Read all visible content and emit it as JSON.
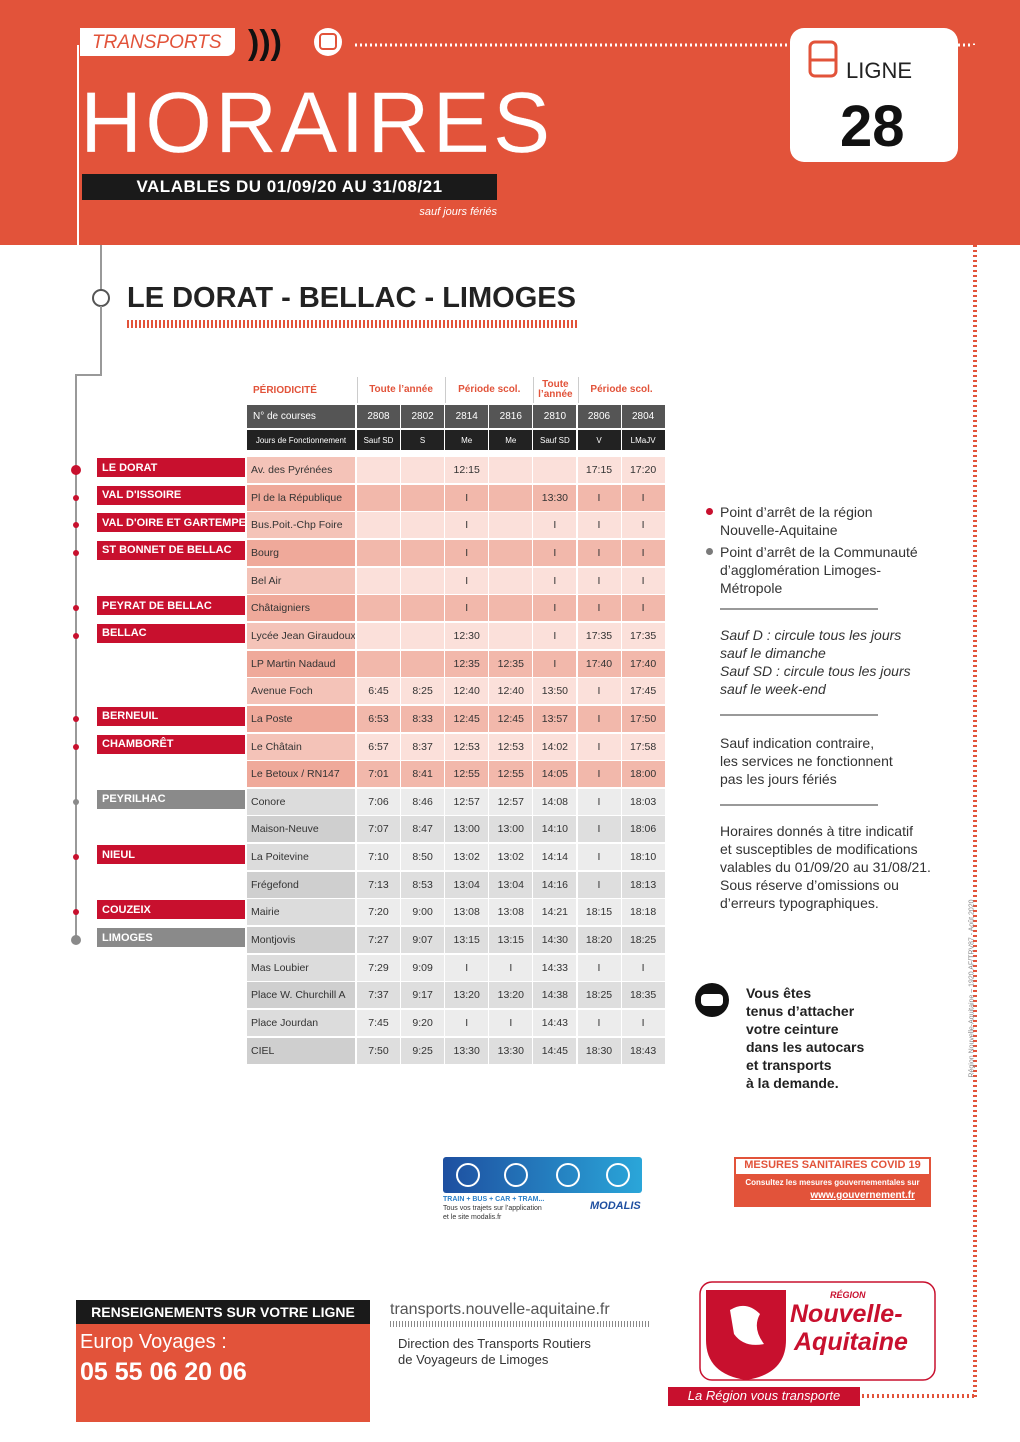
{
  "header": {
    "label": "TRANSPORTS",
    "title": "HORAIRES",
    "validity": "VALABLES DU 01/09/20 AU 31/08/21",
    "note": "sauf jours fériés",
    "line_label": "LIGNE",
    "line_number": "28"
  },
  "route": "LE DORAT - BELLAC - LIMOGES",
  "table": {
    "period_label": "PÉRIODICITÉ",
    "periods": [
      "Toute l’année",
      "Période scol.",
      "Toute l’année",
      "Période scol."
    ],
    "courses_label": "N° de courses",
    "courses": [
      "2808",
      "2802",
      "2814",
      "2816",
      "2810",
      "2806",
      "2804"
    ],
    "days_label": "Jours de Fonctionnement",
    "days": [
      "Sauf SD",
      "S",
      "Me",
      "Me",
      "Sauf SD",
      "V",
      "LMaJV"
    ],
    "rows": [
      {
        "commune": "LE DORAT",
        "color": "#c8102e",
        "stop": "Av. des Pyrénées",
        "times": [
          null,
          null,
          "12:15",
          null,
          null,
          "17:15",
          "17:20"
        ]
      },
      {
        "commune": "VAL D'ISSOIRE",
        "color": "#c8102e",
        "stop": "Pl de la République",
        "times": [
          null,
          null,
          "I",
          null,
          "13:30",
          "I",
          "I"
        ]
      },
      {
        "commune": "VAL D'OIRE ET GARTEMPE",
        "color": "#c8102e",
        "stop": "Bus.Poit.-Chp Foire",
        "times": [
          null,
          null,
          "I",
          null,
          "I",
          "I",
          "I"
        ]
      },
      {
        "commune": "ST BONNET DE BELLAC",
        "color": "#c8102e",
        "stop": "Bourg",
        "times": [
          null,
          null,
          "I",
          null,
          "I",
          "I",
          "I"
        ]
      },
      {
        "commune": null,
        "color": null,
        "stop": "Bel Air",
        "times": [
          null,
          null,
          "I",
          null,
          "I",
          "I",
          "I"
        ]
      },
      {
        "commune": "PEYRAT DE BELLAC",
        "color": "#c8102e",
        "stop": "Châtaigniers",
        "times": [
          null,
          null,
          "I",
          null,
          "I",
          "I",
          "I"
        ]
      },
      {
        "commune": "BELLAC",
        "color": "#c8102e",
        "stop": "Lycée Jean Giraudoux",
        "times": [
          null,
          null,
          "12:30",
          null,
          "I",
          "17:35",
          "17:35"
        ]
      },
      {
        "commune": null,
        "color": null,
        "stop": "LP Martin Nadaud",
        "times": [
          null,
          null,
          "12:35",
          "12:35",
          "I",
          "17:40",
          "17:40"
        ]
      },
      {
        "commune": null,
        "color": null,
        "stop": "Avenue Foch",
        "times": [
          "6:45",
          "8:25",
          "12:40",
          "12:40",
          "13:50",
          "I",
          "17:45"
        ]
      },
      {
        "commune": "BERNEUIL",
        "color": "#c8102e",
        "stop": "La Poste",
        "times": [
          "6:53",
          "8:33",
          "12:45",
          "12:45",
          "13:57",
          "I",
          "17:50"
        ]
      },
      {
        "commune": "CHAMBORÊT",
        "color": "#c8102e",
        "stop": "Le Châtain",
        "times": [
          "6:57",
          "8:37",
          "12:53",
          "12:53",
          "14:02",
          "I",
          "17:58"
        ]
      },
      {
        "commune": null,
        "color": null,
        "stop": "Le Betoux / RN147",
        "times": [
          "7:01",
          "8:41",
          "12:55",
          "12:55",
          "14:05",
          "I",
          "18:00"
        ]
      },
      {
        "commune": "PEYRILHAC",
        "color": "#8a8a8a",
        "stop": "Conore",
        "times": [
          "7:06",
          "8:46",
          "12:57",
          "12:57",
          "14:08",
          "I",
          "18:03"
        ]
      },
      {
        "commune": null,
        "color": null,
        "stop": "Maison-Neuve",
        "times": [
          "7:07",
          "8:47",
          "13:00",
          "13:00",
          "14:10",
          "I",
          "18:06"
        ]
      },
      {
        "commune": "NIEUL",
        "color": "#c8102e",
        "stop": "La Poitevine",
        "times": [
          "7:10",
          "8:50",
          "13:02",
          "13:02",
          "14:14",
          "I",
          "18:10"
        ]
      },
      {
        "commune": null,
        "color": null,
        "stop": "Frégefond",
        "times": [
          "7:13",
          "8:53",
          "13:04",
          "13:04",
          "14:16",
          "I",
          "18:13"
        ]
      },
      {
        "commune": "COUZEIX",
        "color": "#c8102e",
        "stop": "Mairie",
        "times": [
          "7:20",
          "9:00",
          "13:08",
          "13:08",
          "14:21",
          "18:15",
          "18:18"
        ]
      },
      {
        "commune": "LIMOGES",
        "color": "#8a8a8a",
        "stop": "Montjovis",
        "times": [
          "7:27",
          "9:07",
          "13:15",
          "13:15",
          "14:30",
          "18:20",
          "18:25"
        ]
      },
      {
        "commune": null,
        "color": null,
        "stop": "Mas Loubier",
        "times": [
          "7:29",
          "9:09",
          "I",
          "I",
          "14:33",
          "I",
          "I"
        ]
      },
      {
        "commune": null,
        "color": null,
        "stop": "Place W. Churchill A",
        "times": [
          "7:37",
          "9:17",
          "13:20",
          "13:20",
          "14:38",
          "18:25",
          "18:35"
        ]
      },
      {
        "commune": null,
        "color": null,
        "stop": "Place Jourdan",
        "times": [
          "7:45",
          "9:20",
          "I",
          "I",
          "14:43",
          "I",
          "I"
        ]
      },
      {
        "commune": null,
        "color": null,
        "stop": "CIEL",
        "times": [
          "7:50",
          "9:25",
          "13:30",
          "13:30",
          "14:45",
          "18:30",
          "18:43"
        ]
      }
    ]
  },
  "legend": [
    {
      "color": "#c8102e",
      "lines": [
        "Point d’arrêt de la région",
        "Nouvelle-Aquitaine"
      ]
    },
    {
      "color": "#7a7a7a",
      "lines": [
        "Point d’arrêt de la Communauté",
        "d’agglomération Limoges-",
        "Métropole"
      ]
    }
  ],
  "notes": {
    "abbreviations": [
      "Sauf D : circule tous les jours",
      "sauf le dimanche",
      "Sauf SD : circule tous les jours",
      "sauf le week-end"
    ],
    "holidays": [
      "Sauf indication contraire,",
      "les services ne fonctionnent",
      "pas les jours fériés"
    ],
    "disclaimer": [
      "Horaires donnés à titre indicatif",
      "et susceptibles de modifications",
      "valables du 01/09/20 au 31/08/21.",
      "Sous réserve d’omissions ou",
      "d’erreurs typographiques."
    ]
  },
  "seatbelt": [
    "Vous êtes",
    "tenus d’attacher",
    "votre ceinture",
    "dans les autocars",
    "et transports",
    "à la demande."
  ],
  "covid": {
    "title": "MESURES SANITAIRES COVID 19",
    "text": "Consultez les mesures gouvernementales sur",
    "link": "www.gouvernement.fr"
  },
  "modalis": {
    "tagline": "TRAIN + BUS + CAR + TRAM...",
    "lines": [
      "Tous vos trajets sur l’application",
      "et le site modalis.fr"
    ],
    "brand": "MODALIS"
  },
  "footer": {
    "info_title": "RENSEIGNEMENTS SUR VOTRE LIGNE",
    "operator": "Europ Voyages :",
    "phone": "05 55 06 20 06",
    "website": "transports.nouvelle-aquitaine.fr",
    "direction": [
      "Direction des Transports Routiers",
      "de Voyageurs de Limoges"
    ],
    "logo": [
      "RÉGION",
      "Nouvelle-",
      "Aquitaine"
    ],
    "slogan": "La Région vous transporte"
  },
  "credit": "Région Nouvelle-Aquitaine – 1920 AF/TRV87 - Août 2020"
}
